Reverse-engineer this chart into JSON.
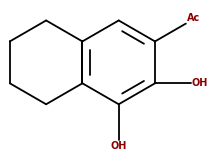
{
  "background_color": "#ffffff",
  "bond_color": "#000000",
  "ac_color": "#8B0000",
  "oh_color": "#8B0000",
  "ac_text": "Ac",
  "oh_text": "OH",
  "figsize": [
    2.13,
    1.65
  ],
  "dpi": 100,
  "lw": 1.3
}
